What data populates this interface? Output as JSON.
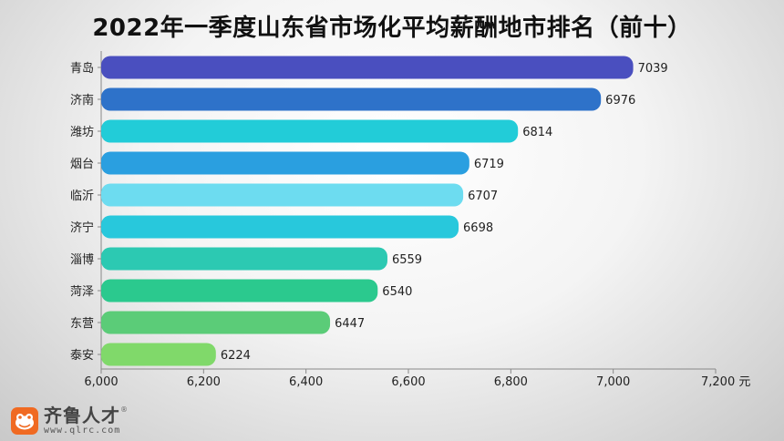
{
  "chart_data": {
    "type": "bar",
    "orientation": "horizontal",
    "title": "2022年一季度山东省市场化平均薪酬地市排名（前十）",
    "categories": [
      "青岛",
      "济南",
      "潍坊",
      "烟台",
      "临沂",
      "济宁",
      "淄博",
      "菏泽",
      "东营",
      "泰安"
    ],
    "values": [
      7039,
      6976,
      6814,
      6719,
      6707,
      6698,
      6559,
      6540,
      6447,
      6224
    ],
    "colors": [
      "#4a4fbf",
      "#2e72c9",
      "#22ccd8",
      "#2a9fe0",
      "#6ddcf0",
      "#28c8dc",
      "#2cc9b2",
      "#2bc98e",
      "#5bcc78",
      "#80d96a"
    ],
    "xlim": [
      6000,
      7200
    ],
    "xticks": [
      6000,
      6200,
      6400,
      6600,
      6800,
      7000,
      7200
    ],
    "xtick_labels": [
      "6,000",
      "6,200",
      "6,400",
      "6,600",
      "6,800",
      "7,000",
      "7,200 元"
    ],
    "grid": false
  },
  "logo": {
    "name": "齐鲁人才",
    "url": "www.qlrc.com",
    "mark": "®",
    "icon": "frog-icon",
    "color": "#f06a22"
  }
}
